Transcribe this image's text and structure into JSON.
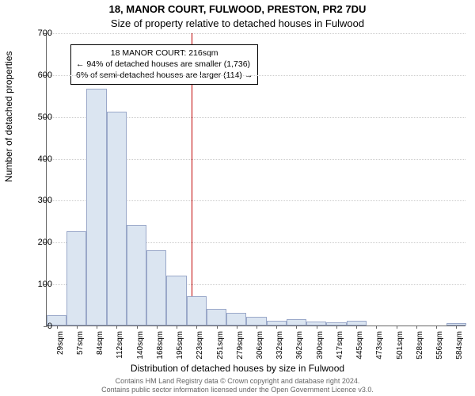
{
  "title_main": "18, MANOR COURT, FULWOOD, PRESTON, PR2 7DU",
  "title_sub": "Size of property relative to detached houses in Fulwood",
  "y_label": "Number of detached properties",
  "x_label": "Distribution of detached houses by size in Fulwood",
  "credits_line1": "Contains HM Land Registry data © Crown copyright and database right 2024.",
  "credits_line2": "Contains public sector information licensed under the Open Government Licence v3.0.",
  "chart": {
    "type": "histogram",
    "background_color": "#ffffff",
    "bar_fill": "#dbe5f1",
    "bar_border": "#9aa8c9",
    "grid_color": "#cccccc",
    "axis_color": "#666666",
    "marker_color": "#c00000",
    "ylim": [
      0,
      700
    ],
    "ytick_step": 100,
    "yticks": [
      0,
      100,
      200,
      300,
      400,
      500,
      600,
      700
    ],
    "x_categories": [
      "29sqm",
      "57sqm",
      "84sqm",
      "112sqm",
      "140sqm",
      "168sqm",
      "195sqm",
      "223sqm",
      "251sqm",
      "279sqm",
      "306sqm",
      "332sqm",
      "362sqm",
      "390sqm",
      "417sqm",
      "445sqm",
      "473sqm",
      "501sqm",
      "528sqm",
      "556sqm",
      "584sqm"
    ],
    "values": [
      25,
      225,
      565,
      510,
      240,
      180,
      120,
      70,
      40,
      30,
      20,
      12,
      15,
      10,
      8,
      12,
      0,
      0,
      0,
      0,
      5
    ],
    "marker_x_sqm": 216,
    "annotation": {
      "line1": "18 MANOR COURT: 216sqm",
      "line2": "← 94% of detached houses are smaller (1,736)",
      "line3": "6% of semi-detached houses are larger (114) →"
    }
  }
}
